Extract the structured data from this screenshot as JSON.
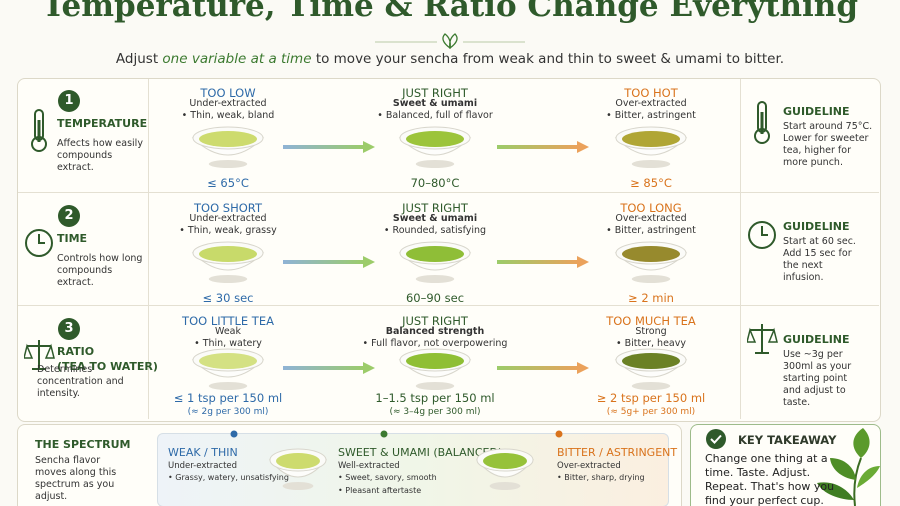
{
  "header": {
    "title": "Temperature, Time & Ratio Change Everything",
    "subtitle": [
      "Adjust",
      "one variable at a time",
      "to move your sencha from weak and thin to sweet & umami to bitter."
    ]
  },
  "rows": [
    {
      "number": "1",
      "name": "TEMPERATURE",
      "description": "Affects how easily compounds extract.",
      "states": [
        {
          "label": "TOO LOW",
          "subtitle": "Under-extracted",
          "note": "• Thin, weak, bland",
          "value": "≤ 65°C",
          "tea_color": "#cddb6e"
        },
        {
          "label": "JUST RIGHT",
          "subtitle": "Sweet & umami",
          "note": "• Balanced, full of flavor",
          "value": "70–80°C",
          "tea_color": "#9cc43a"
        },
        {
          "label": "TOO HOT",
          "subtitle": "Over-extracted",
          "note": "• Bitter, astringent",
          "value": "≥ 85°C",
          "tea_color": "#b0a635"
        }
      ],
      "guideline": {
        "title": "GUIDELINE",
        "text": "Start around 75°C. Lower for sweeter tea, higher for more punch."
      }
    },
    {
      "number": "2",
      "name": "TIME",
      "description": "Controls how long compounds extract.",
      "states": [
        {
          "label": "TOO SHORT",
          "subtitle": "Under-extracted",
          "note": "• Thin, weak, grassy",
          "value": "≤ 30 sec",
          "tea_color": "#c8da6a"
        },
        {
          "label": "JUST RIGHT",
          "subtitle": "Sweet & umami",
          "note": "• Rounded, satisfying",
          "value": "60–90 sec",
          "tea_color": "#8fbe37"
        },
        {
          "label": "TOO LONG",
          "subtitle": "Over-extracted",
          "note": "• Bitter, astringent",
          "value": "≥ 2 min",
          "tea_color": "#978a2d"
        }
      ],
      "guideline": {
        "title": "GUIDELINE",
        "text": "Start at 60 sec. Add 15 sec for the next infusion."
      }
    },
    {
      "number": "3",
      "name": "RATIO",
      "name_detail": "(TEA TO WATER)",
      "description": "Determines concentration and intensity.",
      "states": [
        {
          "label": "TOO LITTLE TEA",
          "subtitle": "Weak",
          "note": "• Thin, watery",
          "value": "≤ 1 tsp per 150 ml",
          "detail": "(≈ 2g per 300 ml)",
          "tea_color": "#d4e183"
        },
        {
          "label": "JUST RIGHT",
          "subtitle": "Balanced strength",
          "note": "• Full flavor, not overpowering",
          "value": "1–1.5 tsp per 150 ml",
          "detail": "(≈ 3–4g per 300 ml)",
          "tea_color": "#8fbf34"
        },
        {
          "label": "TOO MUCH TEA",
          "subtitle": "Strong",
          "note": "• Bitter, heavy",
          "value": "≥ 2 tsp per 150 ml",
          "detail": "(≈ 5g+ per 300 ml)",
          "tea_color": "#6b8125"
        }
      ],
      "guideline": {
        "title": "GUIDELINE",
        "text": "Use ~3g per 300ml as your starting point and adjust to taste."
      }
    }
  ],
  "spectrum": {
    "title": "THE SPECTRUM",
    "description": "Sencha flavor moves along this spectrum as you adjust.",
    "stages": [
      {
        "label": "WEAK / THIN",
        "subtitle": "Under-extracted",
        "notes": [
          "• Grassy, watery, unsatisfying"
        ],
        "tea_color": "#cddb6e"
      },
      {
        "label": "SWEET & UMAMI (BALANCED)",
        "subtitle": "Well-extracted",
        "notes": [
          "• Sweet, savory, smooth",
          "• Pleasant aftertaste"
        ],
        "tea_color": "#96c23a"
      },
      {
        "label": "BITTER / ASTRINGENT",
        "subtitle": "Over-extracted",
        "notes": [
          "• Bitter, sharp, drying"
        ]
      }
    ]
  },
  "takeaway": {
    "title": "KEY TAKEAWAY",
    "text": "Change one thing at a time. Taste. Adjust. Repeat. That's how you find your perfect cup."
  }
}
